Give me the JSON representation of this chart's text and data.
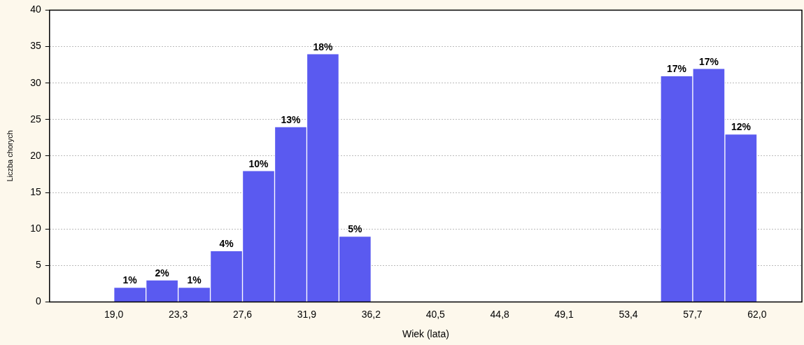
{
  "chart_data": {
    "type": "histogram",
    "xlabel": "Wiek (lata)",
    "ylabel": "Liczba chorych",
    "bins": [
      19.0,
      21.15,
      23.3,
      25.45,
      27.6,
      29.75,
      31.9,
      34.05,
      36.2,
      38.35,
      40.5,
      42.65,
      44.8,
      46.95,
      49.1,
      51.25,
      53.4,
      55.55,
      57.7,
      59.85,
      62.0
    ],
    "values": [
      2,
      3,
      2,
      7,
      18,
      24,
      34,
      9,
      0,
      0,
      0,
      0,
      0,
      0,
      0,
      0,
      0,
      31,
      32,
      23
    ],
    "annotations": [
      {
        "text": "1%",
        "x": 20.075,
        "y": 2
      },
      {
        "text": "2%",
        "x": 22.225,
        "y": 3
      },
      {
        "text": "1%",
        "x": 24.375,
        "y": 2
      },
      {
        "text": "4%",
        "x": 26.525,
        "y": 7
      },
      {
        "text": "10%",
        "x": 28.675,
        "y": 18
      },
      {
        "text": "13%",
        "x": 30.825,
        "y": 24
      },
      {
        "text": "18%",
        "x": 32.975,
        "y": 34
      },
      {
        "text": "5%",
        "x": 35.125,
        "y": 9
      },
      {
        "text": "17%",
        "x": 56.625,
        "y": 31
      },
      {
        "text": "17%",
        "x": 58.775,
        "y": 32
      },
      {
        "text": "12%",
        "x": 60.925,
        "y": 23
      }
    ],
    "color": "#5a5af0",
    "xlim": [
      14.7,
      65.0
    ],
    "xticks": [
      {
        "value": 19.0,
        "label": "19,0"
      },
      {
        "value": 23.3,
        "label": "23,3"
      },
      {
        "value": 27.6,
        "label": "27,6"
      },
      {
        "value": 31.9,
        "label": "31,9"
      },
      {
        "value": 36.2,
        "label": "36,2"
      },
      {
        "value": 40.5,
        "label": "40,5"
      },
      {
        "value": 44.8,
        "label": "44,8"
      },
      {
        "value": 49.1,
        "label": "49,1"
      },
      {
        "value": 53.4,
        "label": "53,4"
      },
      {
        "value": 57.7,
        "label": "57,7"
      },
      {
        "value": 62.0,
        "label": "62,0"
      }
    ],
    "ylim": [
      0,
      40
    ],
    "yticks": [
      0,
      5,
      10,
      15,
      20,
      25,
      30,
      35,
      40
    ],
    "grid": "y",
    "legend": false
  }
}
